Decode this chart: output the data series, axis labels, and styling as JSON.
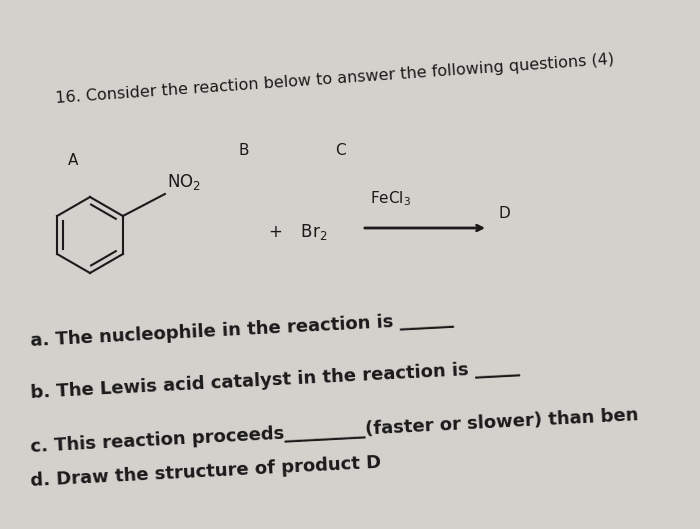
{
  "background_color": "#c8c4c0",
  "title": "16. Consider the reaction below to answer the following questions (4)",
  "title_fontsize": 11.5,
  "title_rotation": 4,
  "label_A": "A",
  "label_B": "B",
  "label_C": "C",
  "label_D": "D",
  "text_color": "#1a1a1a",
  "fontsize_questions": 13,
  "q_a": "a. The nucleophile in the reaction is ______",
  "q_b": "b. The Lewis acid catalyst in the reaction is _____",
  "q_c": "c. This reaction proceeds_________(faster or slower) than ben",
  "q_d": "d. Draw the structure of product D"
}
